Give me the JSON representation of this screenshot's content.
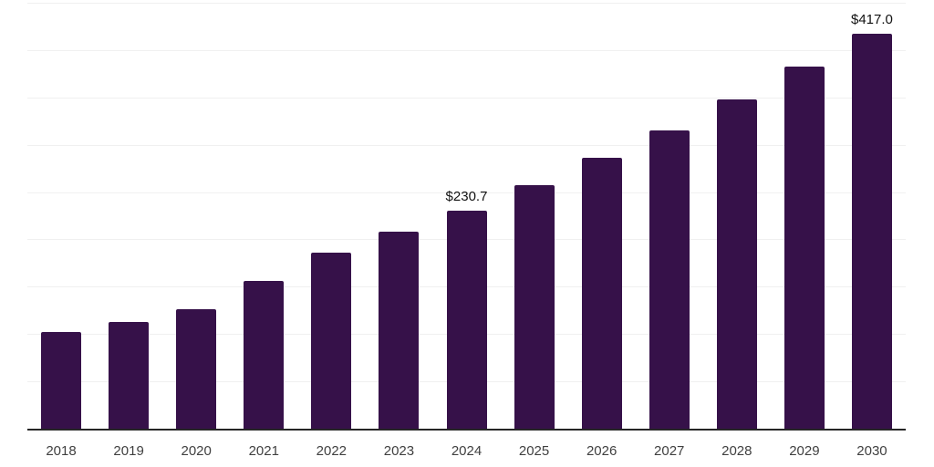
{
  "chart_data": {
    "type": "bar",
    "title": "",
    "xlabel": "",
    "ylabel": "",
    "categories": [
      "2018",
      "2019",
      "2020",
      "2021",
      "2022",
      "2023",
      "2024",
      "2025",
      "2026",
      "2027",
      "2028",
      "2029",
      "2030"
    ],
    "values": [
      102.5,
      113,
      126,
      156.5,
      185.5,
      208,
      230.7,
      257.5,
      286,
      315,
      347.5,
      383,
      417.0
    ],
    "data_labels": [
      {
        "category": "2024",
        "text": "$230.7"
      },
      {
        "category": "2030",
        "text": "$417.0"
      }
    ],
    "ylim": [
      0,
      450
    ],
    "gridline_step": 50,
    "grid": "horizontal",
    "legend": "none",
    "y_tick_labels_visible": false,
    "colors": {
      "bar": "#361149",
      "gridline": "#f0f0f0",
      "axis_line": "#262626",
      "tick_label": "#404040",
      "data_label": "#111111",
      "background": "#ffffff"
    }
  }
}
